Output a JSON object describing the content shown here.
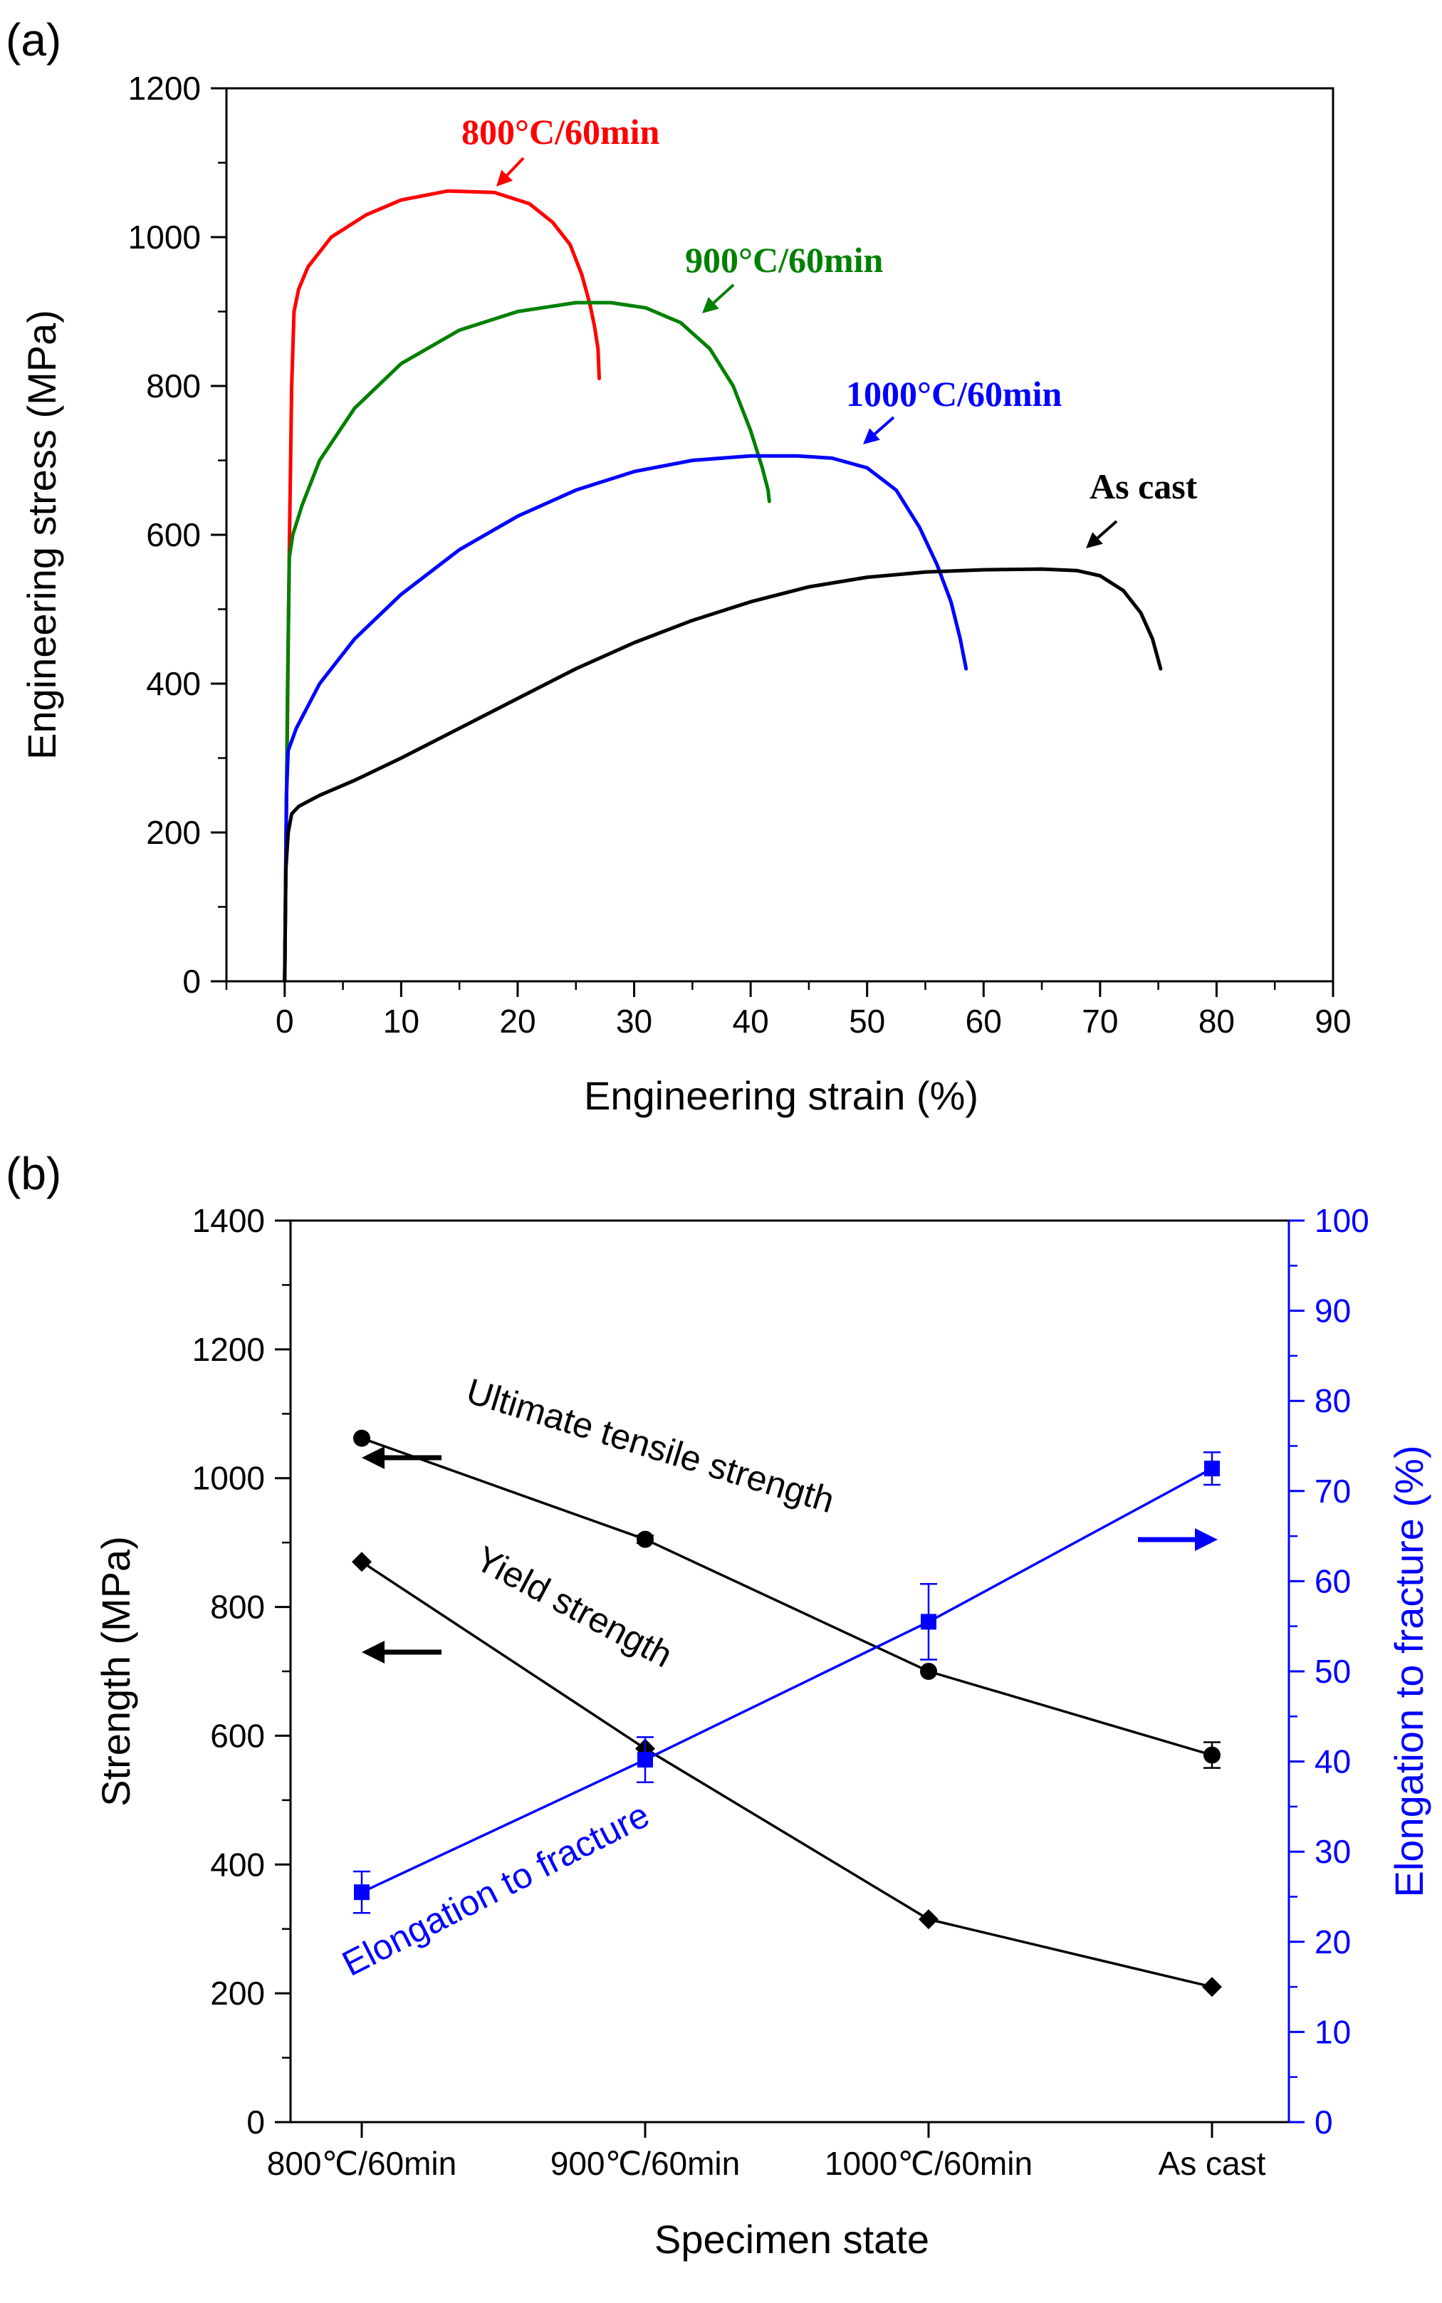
{
  "chart_data": [
    {
      "panel_label": "(a)",
      "type": "line",
      "xlabel": "Engineering strain (%)",
      "ylabel": "Engineering stress (MPa)",
      "xlim": [
        -5,
        90
      ],
      "ylim": [
        0,
        1200
      ],
      "xticks": [
        0,
        10,
        20,
        30,
        40,
        50,
        60,
        70,
        80,
        90
      ],
      "yticks": [
        0,
        200,
        400,
        600,
        800,
        1000,
        1200
      ],
      "grid": false,
      "series": [
        {
          "name": "800°C/60min",
          "color": "#ff0000",
          "x": [
            0,
            0.3,
            0.4,
            0.6,
            0.8,
            1.2,
            2,
            4,
            7,
            10,
            14,
            18,
            21,
            23,
            24.5,
            25.5,
            26.2,
            26.6,
            26.9,
            27.0
          ],
          "y": [
            0,
            450,
            580,
            800,
            900,
            930,
            960,
            1000,
            1030,
            1050,
            1062,
            1060,
            1045,
            1020,
            990,
            950,
            910,
            880,
            850,
            810
          ]
        },
        {
          "name": "900°C/60min",
          "color": "#008000",
          "x": [
            0,
            0.25,
            0.4,
            0.7,
            1.5,
            3,
            6,
            10,
            15,
            20,
            25,
            28,
            31,
            34,
            36.5,
            38.5,
            40,
            41,
            41.5,
            41.6
          ],
          "y": [
            0,
            400,
            570,
            600,
            640,
            700,
            770,
            830,
            875,
            900,
            912,
            912,
            905,
            885,
            850,
            800,
            740,
            690,
            660,
            645
          ]
        },
        {
          "name": "1000°C/60min",
          "color": "#0000ff",
          "x": [
            0,
            0.15,
            0.3,
            1,
            3,
            6,
            10,
            15,
            20,
            25,
            30,
            35,
            40,
            44,
            47,
            50,
            52.5,
            54.5,
            56,
            57.2,
            58,
            58.5
          ],
          "y": [
            0,
            250,
            310,
            340,
            400,
            460,
            520,
            580,
            625,
            660,
            685,
            700,
            706,
            706,
            703,
            690,
            660,
            610,
            560,
            510,
            460,
            420
          ]
        },
        {
          "name": "As cast",
          "color": "#000000",
          "x": [
            0,
            0.1,
            0.3,
            0.6,
            1.2,
            3,
            6,
            10,
            15,
            20,
            25,
            30,
            35,
            40,
            45,
            50,
            55,
            60,
            65,
            68,
            70,
            72,
            73.5,
            74.5,
            75.2
          ],
          "y": [
            0,
            150,
            200,
            225,
            235,
            250,
            270,
            300,
            340,
            380,
            420,
            455,
            485,
            510,
            530,
            543,
            550,
            553,
            554,
            552,
            545,
            525,
            495,
            460,
            420
          ]
        }
      ],
      "annotations": [
        "800°C/60min",
        "900°C/60min",
        "1000°C/60min",
        "As cast"
      ]
    },
    {
      "panel_label": "(b)",
      "type": "line",
      "xlabel": "Specimen state",
      "ylabel": "Strength (MPa)",
      "y2label": "Elongation to fracture (%)",
      "categories": [
        "800℃/60min",
        "900℃/60min",
        "1000℃/60min",
        "As cast"
      ],
      "ylim": [
        0,
        1400
      ],
      "y2lim": [
        0,
        100
      ],
      "yticks": [
        0,
        200,
        400,
        600,
        800,
        1000,
        1200,
        1400
      ],
      "y2ticks": [
        0,
        10,
        20,
        30,
        40,
        50,
        60,
        70,
        80,
        90,
        100
      ],
      "grid": false,
      "series": [
        {
          "name": "Ultimate tensile strength",
          "axis": "left",
          "marker": "circle",
          "color": "#000000",
          "values": [
            1062,
            905,
            700,
            570
          ],
          "errors": [
            0,
            6,
            0,
            20
          ]
        },
        {
          "name": "Yield strength",
          "axis": "left",
          "marker": "diamond",
          "color": "#000000",
          "values": [
            870,
            580,
            315,
            210
          ],
          "errors": [
            0,
            0,
            0,
            0
          ]
        },
        {
          "name": "Elongation to fracture",
          "axis": "right",
          "marker": "square",
          "color": "#0000ff",
          "values": [
            25.5,
            40.2,
            55.5,
            72.5
          ],
          "errors": [
            2.3,
            2.5,
            4.2,
            1.8
          ]
        }
      ]
    }
  ]
}
